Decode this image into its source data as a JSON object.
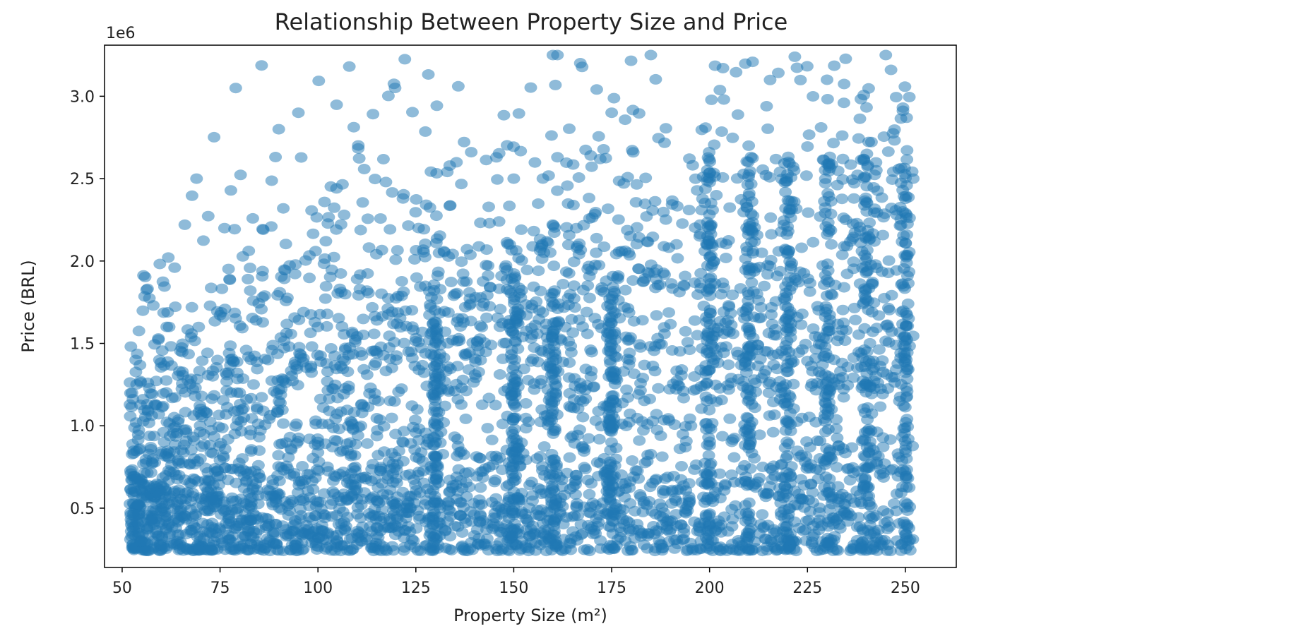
{
  "chart_data": {
    "type": "scatter",
    "title": "Relationship Between Property Size and Price",
    "xlabel": "Property Size (m²)",
    "ylabel": "Price (BRL)",
    "y_offset_label": "1e6",
    "xlim": [
      45.5,
      263
    ],
    "ylim": [
      0.14,
      3.31
    ],
    "xticks": [
      50,
      75,
      100,
      125,
      150,
      175,
      200,
      225,
      250
    ],
    "xtick_labels": [
      "50",
      "75",
      "100",
      "125",
      "150",
      "175",
      "200",
      "225",
      "250"
    ],
    "yticks": [
      0.5,
      1.0,
      1.5,
      2.0,
      2.5,
      3.0
    ],
    "ytick_labels": [
      "0.5",
      "1.0",
      "1.5",
      "2.0",
      "2.5",
      "3.0"
    ],
    "grid": false,
    "marker_color": "#1f77b4",
    "marker_alpha": 0.5,
    "point_count_approx": 3000,
    "x_range": [
      52,
      252
    ],
    "y_range_millions": [
      0.24,
      3.25
    ],
    "series": [
      {
        "values_description_free": true,
        "sample_points": [
          [
            55,
            0.3
          ],
          [
            60,
            0.5
          ],
          [
            70,
            0.8
          ],
          [
            80,
            1.2
          ],
          [
            95,
            2.9
          ],
          [
            108,
            3.18
          ],
          [
            90,
            2.8
          ],
          [
            79,
            3.05
          ],
          [
            69,
            2.5
          ],
          [
            66,
            2.22
          ],
          [
            100,
            1.6
          ],
          [
            120,
            1.4
          ],
          [
            135,
            1.8
          ],
          [
            150,
            2.5
          ],
          [
            160,
            3.25
          ],
          [
            175,
            2.9
          ],
          [
            185,
            3.25
          ],
          [
            200,
            0.25
          ],
          [
            210,
            2.7
          ],
          [
            220,
            0.3
          ],
          [
            230,
            3.1
          ],
          [
            240,
            0.25
          ],
          [
            250,
            0.3
          ],
          [
            252,
            2.5
          ],
          [
            245,
            3.25
          ],
          [
            62,
            1.6
          ]
        ]
      }
    ]
  }
}
